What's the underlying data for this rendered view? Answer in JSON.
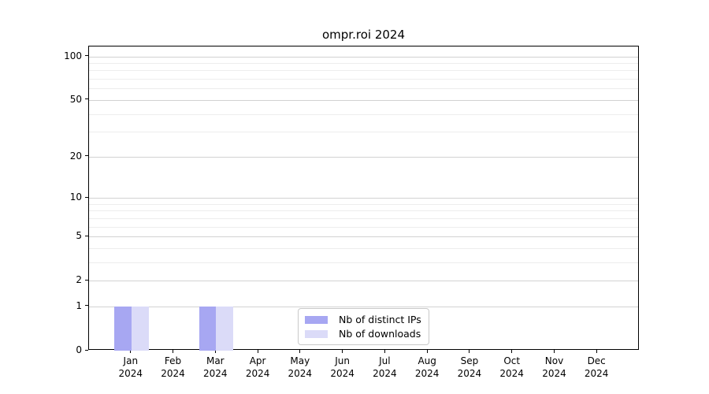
{
  "title": "ompr.roi 2024",
  "colors": {
    "distinct_ips": "#a7a7f2",
    "downloads": "#dbdbf8",
    "major_gridline": "#d2d2d2",
    "minor_gridline": "#ededed",
    "axis": "#000000"
  },
  "chart_data": {
    "type": "bar",
    "title": "ompr.roi 2024",
    "categories": [
      {
        "month": "Jan",
        "year": "2024"
      },
      {
        "month": "Feb",
        "year": "2024"
      },
      {
        "month": "Mar",
        "year": "2024"
      },
      {
        "month": "Apr",
        "year": "2024"
      },
      {
        "month": "May",
        "year": "2024"
      },
      {
        "month": "Jun",
        "year": "2024"
      },
      {
        "month": "Jul",
        "year": "2024"
      },
      {
        "month": "Aug",
        "year": "2024"
      },
      {
        "month": "Sep",
        "year": "2024"
      },
      {
        "month": "Oct",
        "year": "2024"
      },
      {
        "month": "Nov",
        "year": "2024"
      },
      {
        "month": "Dec",
        "year": "2024"
      }
    ],
    "series": [
      {
        "name": "Nb of distinct IPs",
        "color": "#a7a7f2",
        "values": [
          1,
          0,
          1,
          0,
          0,
          0,
          0,
          0,
          0,
          0,
          0,
          0
        ]
      },
      {
        "name": "Nb of downloads",
        "color": "#dbdbf8",
        "values": [
          1,
          0,
          1,
          0,
          0,
          0,
          0,
          0,
          0,
          0,
          0,
          0
        ]
      }
    ],
    "xlabel": "",
    "ylabel": "",
    "y_axis": {
      "scale": "log1p",
      "tick_values": [
        0,
        1,
        2,
        5,
        10,
        20,
        50,
        100
      ],
      "tick_labels": [
        "0",
        "1",
        "2",
        "5",
        "10",
        "20",
        "50",
        "100"
      ],
      "minor_gridline_values": [
        3,
        4,
        6,
        7,
        8,
        9,
        30,
        40,
        60,
        70,
        80,
        90
      ],
      "ylim": [
        0,
        117
      ]
    },
    "grid": true,
    "legend_position": "lower center, inside plot"
  }
}
